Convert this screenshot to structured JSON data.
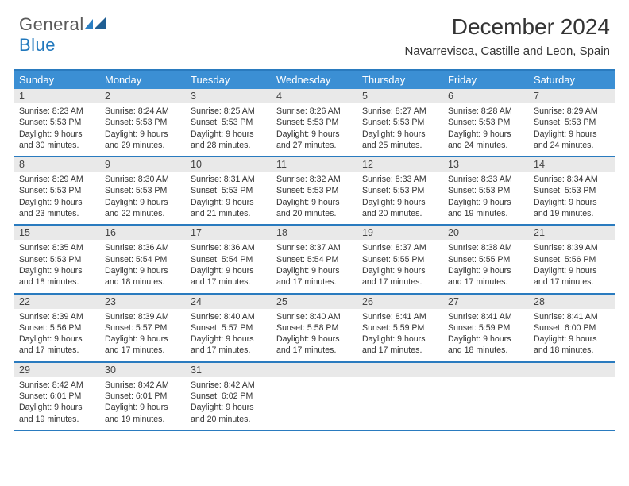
{
  "brand": {
    "word1": "General",
    "word2": "Blue"
  },
  "title": "December 2024",
  "location": "Navarrevisca, Castille and Leon, Spain",
  "colors": {
    "header_bg": "#3b8fd4",
    "rule": "#2a7bbf",
    "daynum_bg": "#e9e9e9",
    "text": "#333333",
    "brand_gray": "#5a5a5a",
    "brand_blue": "#2178bd"
  },
  "weekdays": [
    "Sunday",
    "Monday",
    "Tuesday",
    "Wednesday",
    "Thursday",
    "Friday",
    "Saturday"
  ],
  "weeks": [
    [
      {
        "n": "1",
        "sr": "8:23 AM",
        "ss": "5:53 PM",
        "dl": "9 hours and 30 minutes."
      },
      {
        "n": "2",
        "sr": "8:24 AM",
        "ss": "5:53 PM",
        "dl": "9 hours and 29 minutes."
      },
      {
        "n": "3",
        "sr": "8:25 AM",
        "ss": "5:53 PM",
        "dl": "9 hours and 28 minutes."
      },
      {
        "n": "4",
        "sr": "8:26 AM",
        "ss": "5:53 PM",
        "dl": "9 hours and 27 minutes."
      },
      {
        "n": "5",
        "sr": "8:27 AM",
        "ss": "5:53 PM",
        "dl": "9 hours and 25 minutes."
      },
      {
        "n": "6",
        "sr": "8:28 AM",
        "ss": "5:53 PM",
        "dl": "9 hours and 24 minutes."
      },
      {
        "n": "7",
        "sr": "8:29 AM",
        "ss": "5:53 PM",
        "dl": "9 hours and 24 minutes."
      }
    ],
    [
      {
        "n": "8",
        "sr": "8:29 AM",
        "ss": "5:53 PM",
        "dl": "9 hours and 23 minutes."
      },
      {
        "n": "9",
        "sr": "8:30 AM",
        "ss": "5:53 PM",
        "dl": "9 hours and 22 minutes."
      },
      {
        "n": "10",
        "sr": "8:31 AM",
        "ss": "5:53 PM",
        "dl": "9 hours and 21 minutes."
      },
      {
        "n": "11",
        "sr": "8:32 AM",
        "ss": "5:53 PM",
        "dl": "9 hours and 20 minutes."
      },
      {
        "n": "12",
        "sr": "8:33 AM",
        "ss": "5:53 PM",
        "dl": "9 hours and 20 minutes."
      },
      {
        "n": "13",
        "sr": "8:33 AM",
        "ss": "5:53 PM",
        "dl": "9 hours and 19 minutes."
      },
      {
        "n": "14",
        "sr": "8:34 AM",
        "ss": "5:53 PM",
        "dl": "9 hours and 19 minutes."
      }
    ],
    [
      {
        "n": "15",
        "sr": "8:35 AM",
        "ss": "5:53 PM",
        "dl": "9 hours and 18 minutes."
      },
      {
        "n": "16",
        "sr": "8:36 AM",
        "ss": "5:54 PM",
        "dl": "9 hours and 18 minutes."
      },
      {
        "n": "17",
        "sr": "8:36 AM",
        "ss": "5:54 PM",
        "dl": "9 hours and 17 minutes."
      },
      {
        "n": "18",
        "sr": "8:37 AM",
        "ss": "5:54 PM",
        "dl": "9 hours and 17 minutes."
      },
      {
        "n": "19",
        "sr": "8:37 AM",
        "ss": "5:55 PM",
        "dl": "9 hours and 17 minutes."
      },
      {
        "n": "20",
        "sr": "8:38 AM",
        "ss": "5:55 PM",
        "dl": "9 hours and 17 minutes."
      },
      {
        "n": "21",
        "sr": "8:39 AM",
        "ss": "5:56 PM",
        "dl": "9 hours and 17 minutes."
      }
    ],
    [
      {
        "n": "22",
        "sr": "8:39 AM",
        "ss": "5:56 PM",
        "dl": "9 hours and 17 minutes."
      },
      {
        "n": "23",
        "sr": "8:39 AM",
        "ss": "5:57 PM",
        "dl": "9 hours and 17 minutes."
      },
      {
        "n": "24",
        "sr": "8:40 AM",
        "ss": "5:57 PM",
        "dl": "9 hours and 17 minutes."
      },
      {
        "n": "25",
        "sr": "8:40 AM",
        "ss": "5:58 PM",
        "dl": "9 hours and 17 minutes."
      },
      {
        "n": "26",
        "sr": "8:41 AM",
        "ss": "5:59 PM",
        "dl": "9 hours and 17 minutes."
      },
      {
        "n": "27",
        "sr": "8:41 AM",
        "ss": "5:59 PM",
        "dl": "9 hours and 18 minutes."
      },
      {
        "n": "28",
        "sr": "8:41 AM",
        "ss": "6:00 PM",
        "dl": "9 hours and 18 minutes."
      }
    ],
    [
      {
        "n": "29",
        "sr": "8:42 AM",
        "ss": "6:01 PM",
        "dl": "9 hours and 19 minutes."
      },
      {
        "n": "30",
        "sr": "8:42 AM",
        "ss": "6:01 PM",
        "dl": "9 hours and 19 minutes."
      },
      {
        "n": "31",
        "sr": "8:42 AM",
        "ss": "6:02 PM",
        "dl": "9 hours and 20 minutes."
      },
      {
        "blank": true
      },
      {
        "blank": true
      },
      {
        "blank": true
      },
      {
        "blank": true
      }
    ]
  ],
  "labels": {
    "sunrise": "Sunrise:",
    "sunset": "Sunset:",
    "daylight": "Daylight:"
  }
}
